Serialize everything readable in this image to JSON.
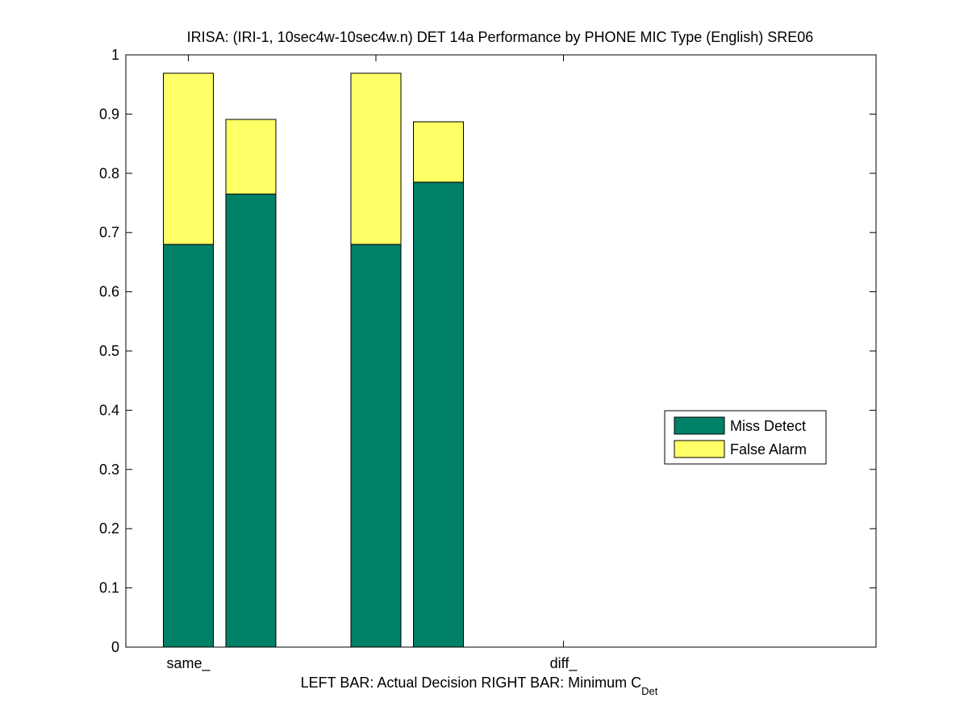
{
  "chart_data": {
    "type": "bar",
    "stacked": true,
    "title": "IRISA: (IRI-1, 10sec4w-10sec4w.n) DET 14a Performance by PHONE MIC Type (English) SRE06",
    "xlabel_main": "LEFT BAR: Actual Decision     RIGHT BAR: Minimum C",
    "xlabel_sub": "Det",
    "ylim": [
      0,
      1
    ],
    "xlim": [
      0.5,
      6.5
    ],
    "yticks": [
      0,
      0.1,
      0.2,
      0.3,
      0.4,
      0.5,
      0.6,
      0.7,
      0.8,
      0.9,
      1
    ],
    "ytick_labels": [
      "0",
      "0.1",
      "0.2",
      "0.3",
      "0.4",
      "0.5",
      "0.6",
      "0.7",
      "0.8",
      "0.9",
      "1"
    ],
    "xticks": [
      1,
      2.5,
      4
    ],
    "xtick_labels": [
      "same_",
      "",
      "diff_"
    ],
    "grid": false,
    "legend_position": "right",
    "bars": [
      {
        "x": 1.0,
        "miss": 0.68,
        "false_alarm": 0.289
      },
      {
        "x": 1.5,
        "miss": 0.765,
        "false_alarm": 0.126
      },
      {
        "x": 2.5,
        "miss": 0.68,
        "false_alarm": 0.289
      },
      {
        "x": 3.0,
        "miss": 0.785,
        "false_alarm": 0.102
      }
    ],
    "series": [
      {
        "name": "Miss Detect",
        "color": "#008066"
      },
      {
        "name": "False Alarm",
        "color": "#ffff66"
      }
    ]
  }
}
